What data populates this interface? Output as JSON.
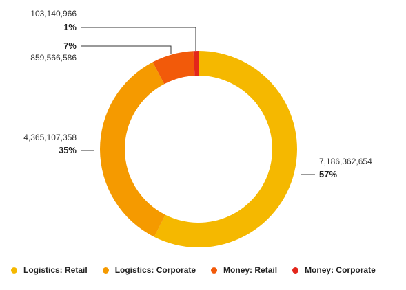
{
  "chart_data": {
    "type": "pie",
    "donut": true,
    "categories": [
      "Logistics: Retail",
      "Logistics: Corporate",
      "Money: Retail",
      "Money: Corporate"
    ],
    "values": [
      7186362654,
      4365107358,
      859566586,
      103140966
    ],
    "value_labels": [
      "7,186,362,654",
      "4,365,107,358",
      "859,566,586",
      "103,140,966"
    ],
    "percent_labels": [
      "57%",
      "35%",
      "7%",
      "1%"
    ],
    "colors": [
      "#f5b800",
      "#f59a00",
      "#f25a0a",
      "#e3261b"
    ],
    "legend_position": "bottom"
  }
}
